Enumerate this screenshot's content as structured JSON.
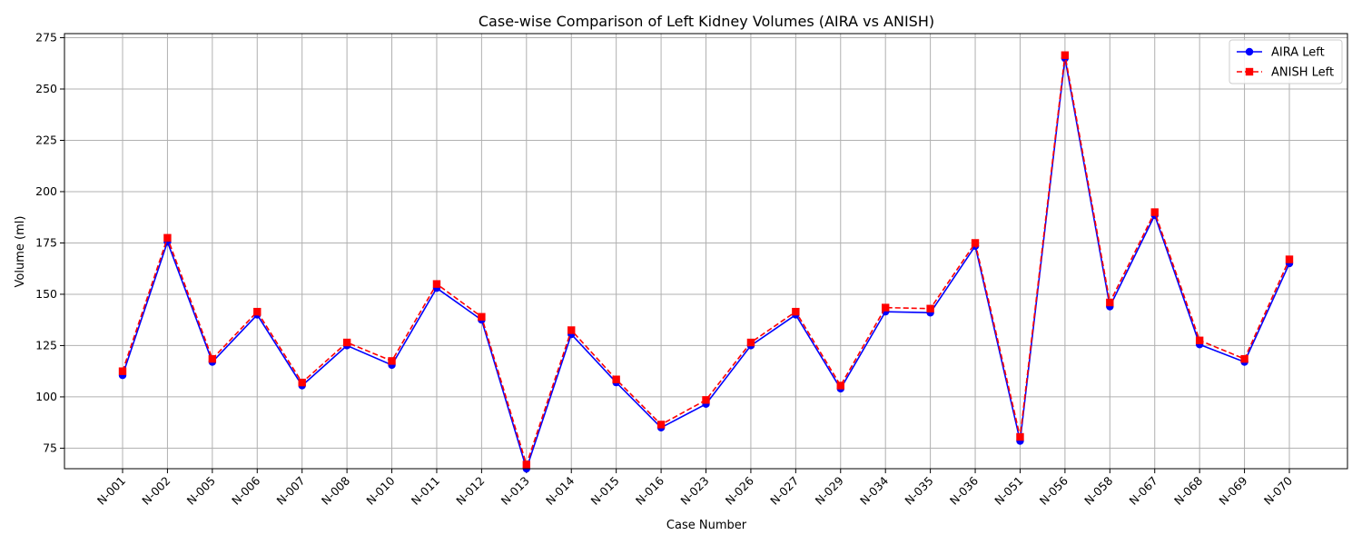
{
  "chart_data": {
    "type": "line",
    "title": "Case-wise Comparison of Left Kidney Volumes (AIRA vs ANISH)",
    "xlabel": "Case Number",
    "ylabel": "Volume (ml)",
    "ylim": [
      65,
      277
    ],
    "yticks": [
      75,
      100,
      125,
      150,
      175,
      200,
      225,
      250,
      275
    ],
    "grid": true,
    "legend_position": "top-right",
    "categories": [
      "N-001",
      "N-002",
      "N-005",
      "N-006",
      "N-007",
      "N-008",
      "N-010",
      "N-011",
      "N-012",
      "N-013",
      "N-014",
      "N-015",
      "N-016",
      "N-023",
      "N-026",
      "N-027",
      "N-029",
      "N-034",
      "N-035",
      "N-036",
      "N-051",
      "N-056",
      "N-058",
      "N-067",
      "N-068",
      "N-069",
      "N-070"
    ],
    "series": [
      {
        "name": "AIRA Left",
        "color": "#0000ff",
        "line_style": "solid",
        "marker": "circle",
        "values": [
          110.5,
          175.5,
          117,
          140,
          105.5,
          125,
          115.5,
          153,
          137.5,
          65,
          130.5,
          107,
          85,
          96.5,
          125,
          140,
          104,
          141.5,
          141,
          173.5,
          78.5,
          265,
          144,
          188.5,
          125.5,
          117,
          165
        ]
      },
      {
        "name": "ANISH Left",
        "color": "#ff0000",
        "line_style": "dashed",
        "marker": "square",
        "values": [
          112.5,
          177.5,
          118.5,
          141.5,
          107,
          126.5,
          117.5,
          155,
          139,
          67,
          132.5,
          108.5,
          86.5,
          98.5,
          126.5,
          141.5,
          105.5,
          143.5,
          143,
          175,
          80.5,
          266.5,
          146,
          190,
          127.5,
          118.5,
          167
        ]
      }
    ]
  }
}
